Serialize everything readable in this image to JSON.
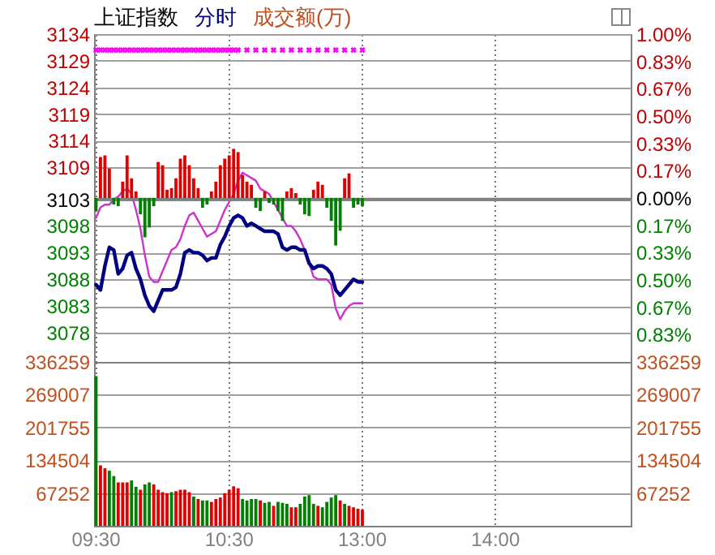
{
  "chart_data": [
    {
      "type": "line",
      "title": "上证指数",
      "subtitle": "分时",
      "annotations": [
        "成交额(万)"
      ],
      "categories": [
        null,
        null,
        null,
        null,
        null,
        null,
        null,
        null,
        null,
        null,
        null,
        null,
        null,
        null,
        null,
        null,
        null,
        null,
        null,
        null,
        null,
        null,
        null,
        null,
        null,
        null,
        null,
        null,
        null,
        null,
        null,
        null,
        null,
        null,
        null,
        null,
        null,
        null,
        null,
        null,
        null,
        null,
        null,
        null,
        null,
        null,
        null,
        null,
        null,
        null,
        null,
        null,
        null,
        null,
        null,
        null,
        null,
        null,
        null,
        null,
        null,
        null,
        null,
        null,
        null,
        null,
        null,
        null,
        null,
        null,
        null,
        null,
        null,
        null,
        null,
        null,
        null,
        null,
        null,
        null,
        null,
        null,
        null,
        null,
        null,
        null,
        null,
        null,
        null,
        null,
        null,
        null,
        null,
        null,
        null,
        null,
        null,
        null,
        null,
        null,
        null,
        null,
        null,
        null,
        null,
        null,
        null,
        null,
        null,
        null,
        null,
        null,
        null,
        null,
        null,
        null,
        null,
        null,
        null,
        null,
        null
      ],
      "ylim": [
        3072.5,
        3134
      ],
      "yticks": [
        3078,
        3083,
        3088,
        3093,
        3098,
        3103,
        3109,
        3114,
        3119,
        3124,
        3129,
        3134
      ],
      "y2lim": [
        -1,
        1
      ],
      "y2ticks": [
        {
          "value": 1,
          "label": "1.00%"
        },
        {
          "value": 0.83,
          "label": "0.83%"
        },
        {
          "value": 0.67,
          "label": "0.67%"
        },
        {
          "value": 0.5,
          "label": "0.50%"
        },
        {
          "value": 0.33,
          "label": "0.33%"
        },
        {
          "value": 0.17,
          "label": "0.17%"
        },
        {
          "value": 0,
          "label": "0.00%"
        },
        {
          "value": -0.17,
          "label": "0.17%"
        },
        {
          "value": -0.33,
          "label": "0.33%"
        },
        {
          "value": -0.5,
          "label": "0.50%"
        },
        {
          "value": -0.67,
          "label": "0.67%"
        },
        {
          "value": -0.83,
          "label": "0.83%"
        }
      ],
      "tick_labels": "y",
      "grid": true,
      "ref_lines": [
        {
          "axis": "y",
          "value": 3103,
          "color": "#808080"
        }
      ],
      "series": [
        {
          "type": "bar",
          "axis": "y2",
          "values": [
            -0.08,
            0.25,
            0.26,
            0.18,
            -0.04,
            -0.05,
            0.1,
            0.26,
            0.12,
            0.04,
            -0.1,
            -0.24,
            -0.18,
            -0.05,
            0.22,
            0.2,
            0.05,
            0.06,
            0.12,
            0.24,
            0.26,
            0.2,
            0.12,
            0.06,
            -0.06,
            -0.04,
            0.04,
            0.1,
            0.2,
            0.24,
            0.26,
            0.3,
            0.28,
            0.14,
            0.1,
            0.08,
            -0.06,
            -0.08,
            0.04,
            -0.03,
            -0.04,
            -0.08,
            -0.14,
            0.04,
            0.06,
            0.03,
            -0.04,
            -0.1,
            -0.11,
            0.05,
            0.1,
            0.08,
            -0.06,
            -0.14,
            -0.29,
            -0.2,
            0.12,
            0.15,
            -0.06,
            -0.04,
            -0.05,
            null,
            null,
            null,
            null,
            null,
            null,
            null,
            null,
            null,
            null,
            null,
            null,
            null,
            null,
            null,
            null,
            null,
            null,
            null,
            null,
            null,
            null,
            null,
            null,
            null,
            null,
            null,
            null,
            null,
            null,
            null,
            null,
            null,
            null,
            null,
            null,
            null,
            null,
            null,
            null,
            null,
            null,
            null,
            null,
            null,
            null,
            null,
            null,
            null,
            null,
            null,
            null,
            null,
            null,
            null,
            null,
            null,
            null,
            null,
            null
          ],
          "colors": [
            "#008000",
            "#e00000",
            "#e00000",
            "#e00000",
            "#008000",
            "#008000",
            "#e00000",
            "#e00000",
            "#e00000",
            "#e00000",
            "#008000",
            "#008000",
            "#008000",
            "#008000",
            "#e00000",
            "#e00000",
            "#e00000",
            "#e00000",
            "#e00000",
            "#e00000",
            "#e00000",
            "#e00000",
            "#e00000",
            "#e00000",
            "#008000",
            "#008000",
            "#e00000",
            "#e00000",
            "#e00000",
            "#e00000",
            "#e00000",
            "#e00000",
            "#e00000",
            "#e00000",
            "#e00000",
            "#e00000",
            "#008000",
            "#008000",
            "#e00000",
            "#008000",
            "#008000",
            "#008000",
            "#008000",
            "#e00000",
            "#e00000",
            "#e00000",
            "#008000",
            "#008000",
            "#008000",
            "#e00000",
            "#e00000",
            "#e00000",
            "#008000",
            "#008000",
            "#008000",
            "#008000",
            "#e00000",
            "#e00000",
            "#008000",
            "#008000",
            "#008000",
            null,
            null,
            null,
            null,
            null,
            null,
            null,
            null,
            null,
            null,
            null,
            null,
            null,
            null,
            null,
            null,
            null,
            null,
            null,
            null,
            null,
            null,
            null,
            null,
            null,
            null,
            null,
            null,
            null,
            null,
            null,
            null,
            null,
            null,
            null,
            null,
            null,
            null,
            null,
            null,
            null,
            null,
            null,
            null,
            null,
            null,
            null,
            null,
            null,
            null,
            null,
            null,
            null,
            null,
            null,
            null,
            null,
            null,
            null,
            null
          ]
        },
        {
          "color": "#cc33cc",
          "values": [
            3099.5,
            3101.5,
            3102,
            3102,
            3103,
            3103.5,
            3104.5,
            3105,
            3104,
            3101,
            3097.5,
            3092.5,
            3088.5,
            3087.5,
            3087.5,
            3089.5,
            3091.5,
            3093.5,
            3094,
            3095.5,
            3098,
            3100,
            3100.5,
            3099,
            3097.5,
            3096,
            3096.5,
            3097,
            3099,
            3101,
            3102.5,
            3104,
            3106.5,
            3108,
            3107.5,
            3107,
            3106.5,
            3105,
            3104.5,
            3104,
            3102.5,
            3101,
            3099.5,
            3098,
            3098,
            3097,
            3095.5,
            3093.5,
            3091,
            3088.5,
            3088,
            3088,
            3088,
            3087,
            3082.5,
            3080.5,
            3082,
            3083,
            3083.5,
            3083.5,
            3083.5,
            null,
            null,
            null,
            null,
            null,
            null,
            null,
            null,
            null,
            null,
            null,
            null,
            null,
            null,
            null,
            null,
            null,
            null,
            null,
            null,
            null,
            null,
            null,
            null,
            null,
            null,
            null,
            null,
            null,
            null,
            null,
            null,
            null,
            null,
            null,
            null,
            null,
            null,
            null,
            null,
            null,
            null,
            null,
            null,
            null,
            null,
            null,
            null,
            null,
            null,
            null,
            null,
            null,
            null,
            null,
            null,
            null,
            null,
            null,
            null
          ]
        },
        {
          "color": "#000080",
          "values": [
            3087,
            3086,
            3090.5,
            3094,
            3093.5,
            3089,
            3090,
            3092.5,
            3093,
            3090,
            3088,
            3085,
            3083,
            3082,
            3084,
            3086,
            3086,
            3086,
            3086.5,
            3089,
            3093,
            3093.5,
            3093,
            3093,
            3092.5,
            3091.5,
            3092,
            3092,
            3094.5,
            3096,
            3098,
            3099.5,
            3100,
            3099.5,
            3098,
            3098.5,
            3098,
            3097.5,
            3097,
            3097,
            3097,
            3096.5,
            3094,
            3093.5,
            3094,
            3094,
            3093.5,
            3093.5,
            3091,
            3090,
            3090.5,
            3090.5,
            3090,
            3089,
            3086,
            3085,
            3086,
            3087,
            3088,
            3087.5,
            3087.5,
            null,
            null,
            null,
            null,
            null,
            null,
            null,
            null,
            null,
            null,
            null,
            null,
            null,
            null,
            null,
            null,
            null,
            null,
            null,
            null,
            null,
            null,
            null,
            null,
            null,
            null,
            null,
            null,
            null,
            null,
            null,
            null,
            null,
            null,
            null,
            null,
            null,
            null,
            null,
            null,
            null,
            null,
            null,
            null,
            null,
            null,
            null,
            null,
            null,
            null,
            null,
            null,
            null,
            null,
            null,
            null,
            null,
            null,
            null,
            null
          ]
        },
        {
          "type": "scatter",
          "marker": "cross",
          "color": "#ff00ff",
          "values": [
            3131,
            3131,
            3131,
            3131,
            3131,
            3131,
            3131,
            3131,
            3131,
            3131,
            3131,
            3131,
            3131,
            3131,
            3131,
            3131,
            3131,
            3131,
            3131,
            3131,
            3131,
            3131,
            3131,
            3131,
            3131,
            3131,
            3131,
            3131,
            3131,
            3131,
            3131,
            3131,
            3131,
            null,
            3131,
            null,
            3131,
            null,
            3131,
            null,
            3131,
            null,
            3131,
            null,
            3131,
            null,
            3131,
            null,
            3131,
            null,
            3131,
            null,
            3131,
            null,
            3131,
            null,
            3131,
            null,
            3131,
            null,
            3131,
            null,
            null,
            null,
            null,
            null,
            null,
            null,
            null,
            null,
            null,
            null,
            null,
            null,
            null,
            null,
            null,
            null,
            null,
            null,
            null,
            null,
            null,
            null,
            null,
            null,
            null,
            null,
            null,
            null,
            null,
            null,
            null,
            null,
            null,
            null,
            null,
            null,
            null,
            null,
            null,
            null,
            null,
            null,
            null,
            null,
            null,
            null,
            null,
            null,
            null,
            null,
            null,
            null,
            null,
            null,
            null,
            null,
            null,
            null,
            null
          ]
        }
      ]
    },
    {
      "type": "bar",
      "categories": [
        "09:30",
        null,
        null,
        null,
        null,
        null,
        null,
        null,
        null,
        null,
        null,
        null,
        null,
        null,
        null,
        null,
        null,
        null,
        null,
        null,
        null,
        null,
        null,
        null,
        null,
        null,
        null,
        null,
        null,
        null,
        "10:30",
        null,
        null,
        null,
        null,
        null,
        null,
        null,
        null,
        null,
        null,
        null,
        null,
        null,
        null,
        null,
        null,
        null,
        null,
        null,
        null,
        null,
        null,
        null,
        null,
        null,
        null,
        null,
        null,
        null,
        "13:00",
        null,
        null,
        null,
        null,
        null,
        null,
        null,
        null,
        null,
        null,
        null,
        null,
        null,
        null,
        null,
        null,
        null,
        null,
        null,
        null,
        null,
        null,
        null,
        null,
        null,
        null,
        null,
        null,
        null,
        "14:00",
        null,
        null,
        null,
        null,
        null,
        null,
        null,
        null,
        null,
        null,
        null,
        null,
        null,
        null,
        null,
        null,
        null,
        null,
        null,
        null,
        null,
        null,
        null,
        null,
        null,
        null,
        null,
        null,
        null,
        null
      ],
      "ylim": [
        0,
        336259
      ],
      "yticks": [
        67252,
        134504,
        201755,
        269007,
        336259
      ],
      "y2lim": [
        0,
        336259
      ],
      "y2ticks": [
        67252,
        134504,
        201755,
        269007,
        336259
      ],
      "grid": true,
      "values": [
        307000,
        124000,
        118000,
        113000,
        102000,
        89000,
        89000,
        89000,
        93000,
        80000,
        74000,
        85000,
        89000,
        85000,
        74000,
        69000,
        67000,
        69000,
        71000,
        74000,
        74000,
        69000,
        60000,
        55000,
        52000,
        52000,
        49000,
        55000,
        58000,
        67000,
        74000,
        81000,
        77000,
        55000,
        52000,
        55000,
        55000,
        52000,
        47000,
        49000,
        41000,
        49000,
        47000,
        45000,
        38000,
        38000,
        45000,
        60000,
        63000,
        45000,
        41000,
        38000,
        49000,
        58000,
        63000,
        52000,
        45000,
        41000,
        38000,
        35000,
        33000,
        null,
        null,
        null,
        null,
        null,
        null,
        null,
        null,
        null,
        null,
        null,
        null,
        null,
        null,
        null,
        null,
        null,
        null,
        null,
        null,
        null,
        null,
        null,
        null,
        null,
        null,
        null,
        null,
        null,
        null,
        null,
        null,
        null,
        null,
        null,
        null,
        null,
        null,
        null,
        null,
        null,
        null,
        null,
        null,
        null,
        null,
        null,
        null,
        null,
        null,
        null,
        null,
        null,
        null,
        null,
        null,
        null,
        null,
        null,
        null
      ],
      "colors": [
        "#008000",
        "#e00000",
        "#e00000",
        "#008000",
        "#008000",
        "#e00000",
        "#e00000",
        "#e00000",
        "#008000",
        "#008000",
        "#e00000",
        "#008000",
        "#008000",
        "#e00000",
        "#e00000",
        "#e00000",
        "#e00000",
        "#008000",
        "#e00000",
        "#e00000",
        "#e00000",
        "#e00000",
        "#008000",
        "#e00000",
        "#008000",
        "#008000",
        "#e00000",
        "#e00000",
        "#e00000",
        "#e00000",
        "#e00000",
        "#e00000",
        "#e00000",
        "#008000",
        "#008000",
        "#008000",
        "#008000",
        "#e00000",
        "#008000",
        "#008000",
        "#e00000",
        "#008000",
        "#008000",
        "#008000",
        "#e00000",
        "#e00000",
        "#008000",
        "#008000",
        "#008000",
        "#008000",
        "#e00000",
        "#008000",
        "#008000",
        "#008000",
        "#008000",
        "#e00000",
        "#008000",
        "#e00000",
        "#e00000",
        "#e00000",
        "#e00000",
        null,
        null,
        null,
        null,
        null,
        null,
        null,
        null,
        null,
        null,
        null,
        null,
        null,
        null,
        null,
        null,
        null,
        null,
        null,
        null,
        null,
        null,
        null,
        null,
        null,
        null,
        null,
        null,
        null,
        null,
        null,
        null,
        null,
        null,
        null,
        null,
        null,
        null,
        null,
        null,
        null,
        null,
        null,
        null,
        null,
        null,
        null,
        null,
        null,
        null,
        null,
        null,
        null,
        null,
        null,
        null,
        null,
        null,
        null,
        null
      ]
    }
  ]
}
